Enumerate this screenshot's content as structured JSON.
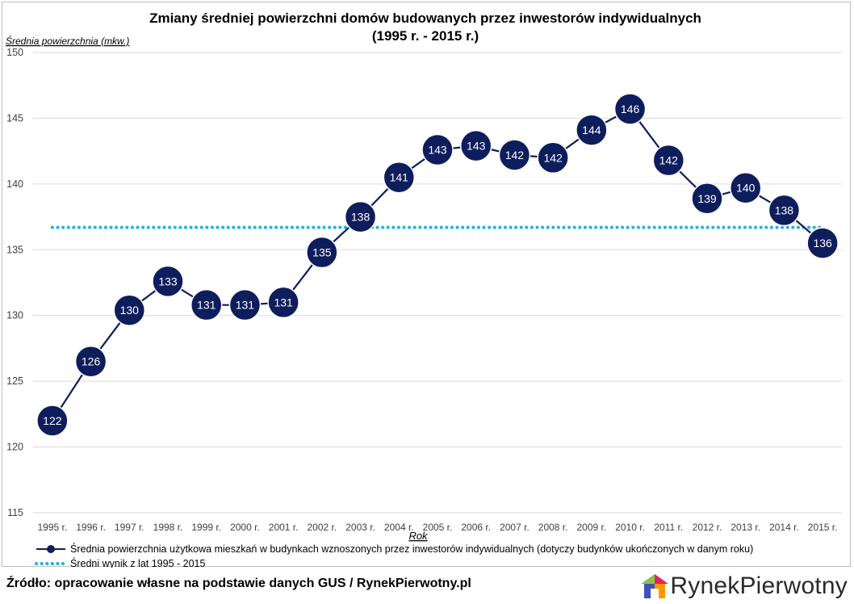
{
  "chart_data": {
    "type": "line",
    "title_line1": "Zmiany średniej powierzchni domów budowanych przez inwestorów indywidualnych",
    "title_line2": "(1995 r. - 2015 r.)",
    "ylabel": "Średnia powierzchnia (mkw.)",
    "xlabel": "Rok",
    "ylim": [
      115,
      150
    ],
    "yticks": [
      115,
      120,
      125,
      130,
      135,
      140,
      145,
      150
    ],
    "grid": true,
    "legend_position": "bottom",
    "categories": [
      "1995 r.",
      "1996 r.",
      "1997 r.",
      "1998 r.",
      "1999 r.",
      "2000 r.",
      "2001 r.",
      "2002 r.",
      "2003 r.",
      "2004 r.",
      "2005 r.",
      "2006 r.",
      "2007 r.",
      "2008 r.",
      "2009 r.",
      "2010 r.",
      "2011 r.",
      "2012 r.",
      "2013 r.",
      "2014 r.",
      "2015 r."
    ],
    "series": [
      {
        "name": "Średnia powierzchnia użytkowa mieszkań w budynkach wznoszonych przez inwestorów indywidualnych (dotyczy budynków ukończonych w danym roku)",
        "values": [
          122.0,
          126.5,
          130.4,
          132.6,
          130.8,
          130.8,
          131.0,
          134.8,
          137.5,
          140.5,
          142.6,
          142.9,
          142.2,
          142.0,
          144.1,
          145.7,
          141.8,
          138.9,
          139.7,
          138.0,
          135.5
        ],
        "labels": [
          "122",
          "126",
          "130",
          "133",
          "131",
          "131",
          "131",
          "135",
          "138",
          "141",
          "143",
          "143",
          "142",
          "142",
          "144",
          "146",
          "142",
          "139",
          "140",
          "138",
          "136"
        ],
        "color": "#0e1d5c",
        "style": "line-with-markers"
      },
      {
        "name": "Średni wynik z lat 1995 - 2015",
        "value": 136.7,
        "color": "#1fb3e5",
        "style": "dotted"
      }
    ]
  },
  "footer": {
    "source": "Źródło: opracowanie własne na podstawie danych GUS / RynekPierwotny.pl",
    "brand_part1": "Rynek",
    "brand_part2": "Pierwotny"
  },
  "colors": {
    "grid": "#d9d9d9",
    "axis_text": "#404040",
    "marker_text": "#ffffff"
  }
}
